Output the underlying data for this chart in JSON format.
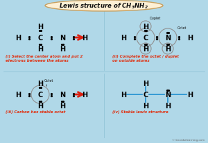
{
  "title": "Lewis structure of CH₃NH₂",
  "bg_color": "#b0d8e8",
  "title_bg": "#fdf0d5",
  "title_border": "#c8a060",
  "red_arrow": "#dd2010",
  "blue_color": "#2090d0",
  "label_color": "#e03010",
  "black": "#111111",
  "gray_circle": "#999999",
  "watermark": "© knordsilearning.com",
  "panel_labels": [
    "(i) Select the center atom and put 2\nelectrons between the atoms",
    "(ii) Complete the octet / duplet\non outside atoms",
    "(iii) Carbon has stable octet",
    "(iv) Stable lewis structure"
  ],
  "duplet_label": "Duplet",
  "octet_label": "Octet"
}
